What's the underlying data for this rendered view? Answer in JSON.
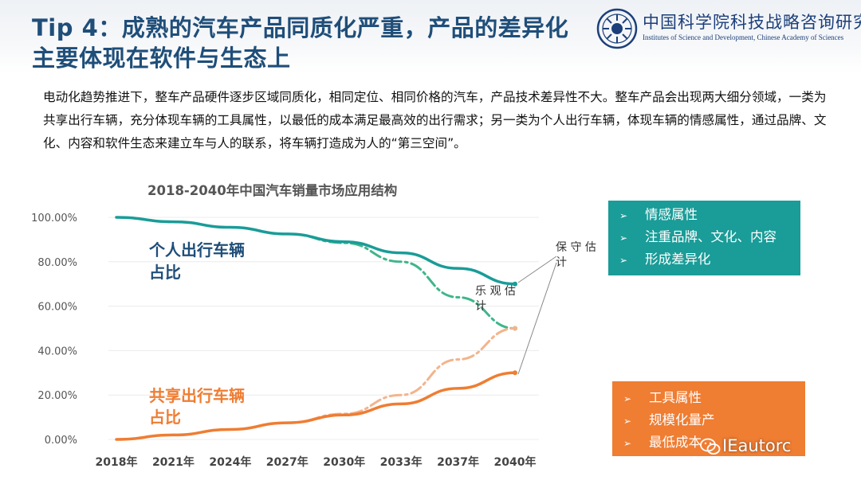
{
  "header": {
    "title_line1": "Tip 4：成熟的汽车产品同质化严重，产品的差异化",
    "title_line2": "主要体现在软件与生态上"
  },
  "logo": {
    "name_cn": "中国科学院科技战略咨询研究院",
    "name_en": "Institutes of Science and Development, Chinese Academy of Sciences"
  },
  "intro": {
    "paragraph": "电动化趋势推进下，整车产品硬件逐步区域同质化，相同定位、相同价格的汽车，产品技术差异性不大。整车产品会出现两大细分领域，一类为共享出行车辆，充分体现车辆的工具属性，以最低的成本满足最高效的出行需求；另一类为个人出行车辆，体现车辆的情感属性，通过品牌、文化、内容和软件生态来建立车与人的联系，将车辆打造成为人的“第三空间”。"
  },
  "chart_data": {
    "type": "line",
    "title": "2018-2040年中国汽车销量市场应用结构",
    "categories": [
      "2018年",
      "2021年",
      "2024年",
      "2027年",
      "2030年",
      "2033年",
      "2037年",
      "2040年"
    ],
    "y_ticks": [
      "0.00%",
      "20.00%",
      "40.00%",
      "60.00%",
      "80.00%",
      "100.00%"
    ],
    "ylim": [
      0,
      100
    ],
    "series": [
      {
        "name": "个人出行车辆占比（保守估计）",
        "style": "solid",
        "color": "#1a9c98",
        "values": [
          100,
          98,
          95.5,
          92.5,
          89,
          84,
          77,
          70
        ]
      },
      {
        "name": "个人出行车辆占比（乐观估计）",
        "style": "dashdot",
        "color": "#3fb68a",
        "values": [
          100,
          98,
          95.5,
          92.5,
          88.5,
          80,
          64,
          50
        ]
      },
      {
        "name": "共享出行车辆占比（保守估计）",
        "style": "solid",
        "color": "#ef7d32",
        "values": [
          0,
          2,
          4.5,
          7.5,
          11,
          16,
          23,
          30
        ]
      },
      {
        "name": "共享出行车辆占比（乐观估计）",
        "style": "dashdot",
        "color": "#f3b48c",
        "values": [
          0,
          2,
          4.5,
          7.5,
          11.5,
          20,
          36,
          50
        ]
      }
    ],
    "series_labels": {
      "personal_line1": "个人出行车辆",
      "personal_line2": "占比",
      "shared_line1": "共享出行车辆",
      "shared_line2": "占比"
    },
    "annotations": {
      "conservative_line1": "保 守 估",
      "conservative_line2": "计",
      "optimistic_line1": "乐 观 估",
      "optimistic_line2": "计"
    },
    "colors": {
      "personal_label": "#1f4e79",
      "shared_label": "#ef7d32",
      "axis_text": "#555555"
    }
  },
  "personal_box": {
    "color": "#1a9c98",
    "items": [
      "情感属性",
      "注重品牌、文化、内容",
      "形成差异化"
    ]
  },
  "shared_box": {
    "color": "#ef7d32",
    "items": [
      "工具属性",
      "规模化量产",
      "最低成本"
    ]
  },
  "watermark": {
    "text": "IEautorc"
  }
}
